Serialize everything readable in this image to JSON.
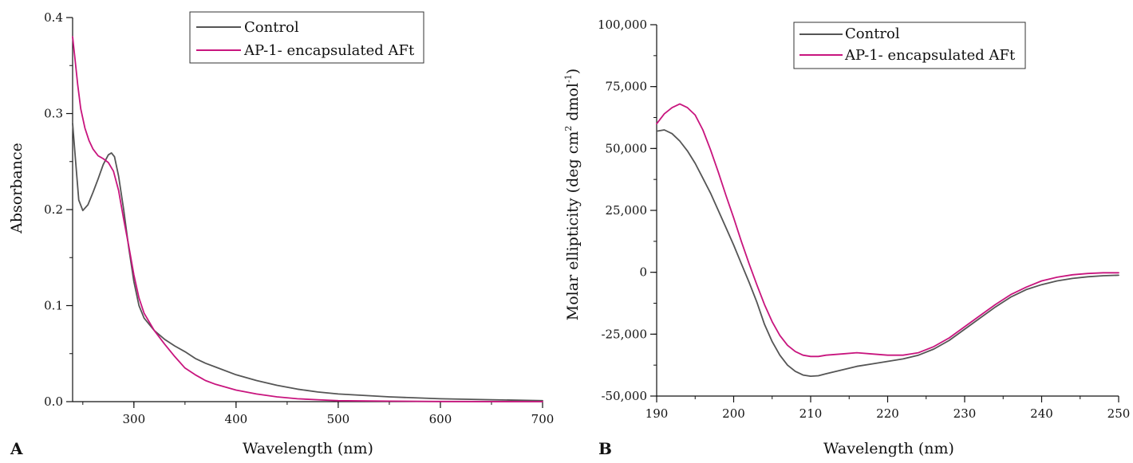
{
  "colors": {
    "control": "#555555",
    "encapsulated": "#c8157e",
    "axis": "#111111"
  },
  "chart_data": [
    {
      "panel": "A",
      "type": "line",
      "xlabel": "Wavelength (nm)",
      "ylabel": "Absorbance",
      "xlim": [
        240,
        700
      ],
      "ylim": [
        0,
        0.4
      ],
      "x_ticks": [
        300,
        400,
        500,
        600,
        700
      ],
      "y_ticks": [
        0.0,
        0.1,
        0.2,
        0.3,
        0.4
      ],
      "x_tick_labels": [
        "300",
        "400",
        "500",
        "600",
        "700"
      ],
      "y_tick_labels": [
        "0.0",
        "0.1",
        "0.2",
        "0.3",
        "0.4"
      ],
      "grid": false,
      "legend_position": "top-center",
      "series": [
        {
          "name": "Control",
          "color_key": "control",
          "x": [
            240,
            243,
            246,
            250,
            255,
            260,
            265,
            270,
            275,
            278,
            281,
            285,
            290,
            295,
            300,
            305,
            310,
            320,
            330,
            340,
            350,
            360,
            370,
            380,
            400,
            420,
            440,
            460,
            480,
            500,
            550,
            600,
            650,
            700
          ],
          "y": [
            0.29,
            0.25,
            0.21,
            0.199,
            0.205,
            0.218,
            0.232,
            0.247,
            0.257,
            0.259,
            0.255,
            0.235,
            0.2,
            0.16,
            0.125,
            0.1,
            0.087,
            0.074,
            0.065,
            0.058,
            0.052,
            0.045,
            0.04,
            0.036,
            0.028,
            0.022,
            0.017,
            0.013,
            0.01,
            0.008,
            0.005,
            0.003,
            0.002,
            0.001
          ]
        },
        {
          "name": "AP-1- encapsulated AFt",
          "color_key": "encapsulated",
          "x": [
            240,
            242,
            245,
            248,
            252,
            256,
            260,
            265,
            270,
            275,
            280,
            285,
            290,
            295,
            300,
            305,
            310,
            320,
            330,
            340,
            350,
            360,
            370,
            380,
            400,
            420,
            440,
            460,
            480,
            500,
            550,
            600,
            700
          ],
          "y": [
            0.38,
            0.36,
            0.33,
            0.305,
            0.285,
            0.272,
            0.263,
            0.256,
            0.253,
            0.249,
            0.24,
            0.22,
            0.19,
            0.162,
            0.132,
            0.108,
            0.092,
            0.074,
            0.06,
            0.047,
            0.035,
            0.028,
            0.022,
            0.018,
            0.012,
            0.008,
            0.005,
            0.003,
            0.002,
            0.001,
            0.0005,
            0.0002,
            0.0
          ]
        }
      ]
    },
    {
      "panel": "B",
      "type": "line",
      "xlabel": "Wavelength (nm)",
      "ylabel": "Molar ellipticity (deg cm",
      "ylabel_sup1": "2",
      "ylabel_mid": " dmol",
      "ylabel_sup2": "-1",
      "ylabel_end": ")",
      "xlim": [
        190,
        250
      ],
      "ylim": [
        -50000,
        100000
      ],
      "x_ticks": [
        190,
        200,
        210,
        220,
        230,
        240,
        250
      ],
      "y_ticks": [
        -50000,
        -25000,
        0,
        25000,
        50000,
        75000,
        100000
      ],
      "x_tick_labels": [
        "190",
        "200",
        "210",
        "220",
        "230",
        "240",
        "250"
      ],
      "y_tick_labels": [
        "-50,000",
        "-25,000",
        "0",
        "25,000",
        "50,000",
        "75,000",
        "100,000"
      ],
      "grid": false,
      "legend_position": "top-right",
      "series": [
        {
          "name": "Control",
          "color_key": "control",
          "x": [
            190,
            191,
            192,
            193,
            194,
            195,
            196,
            197,
            198,
            199,
            200,
            201,
            202,
            203,
            204,
            205,
            206,
            207,
            208,
            209,
            210,
            211,
            212,
            214,
            216,
            218,
            220,
            222,
            224,
            226,
            228,
            230,
            232,
            234,
            236,
            238,
            240,
            242,
            244,
            246,
            248,
            250
          ],
          "y": [
            57000,
            57500,
            56000,
            53000,
            49000,
            44000,
            38000,
            32000,
            25000,
            18000,
            11000,
            3500,
            -4000,
            -12000,
            -21000,
            -28000,
            -33500,
            -37500,
            -40000,
            -41500,
            -42000,
            -41800,
            -41000,
            -39500,
            -38000,
            -37000,
            -36000,
            -35000,
            -33500,
            -31000,
            -27500,
            -23000,
            -18500,
            -14000,
            -10000,
            -7000,
            -5000,
            -3500,
            -2500,
            -1800,
            -1400,
            -1200
          ]
        },
        {
          "name": "AP-1- encapsulated AFt",
          "color_key": "encapsulated",
          "x": [
            190,
            191,
            192,
            193,
            194,
            195,
            196,
            197,
            198,
            199,
            200,
            201,
            202,
            203,
            204,
            205,
            206,
            207,
            208,
            209,
            210,
            211,
            212,
            214,
            216,
            218,
            220,
            222,
            224,
            226,
            228,
            230,
            232,
            234,
            236,
            238,
            240,
            242,
            244,
            246,
            248,
            250
          ],
          "y": [
            60000,
            64000,
            66500,
            68000,
            66500,
            63500,
            57500,
            49500,
            40500,
            31000,
            22000,
            12500,
            3500,
            -5000,
            -13000,
            -20000,
            -25500,
            -29500,
            -32000,
            -33500,
            -34000,
            -34000,
            -33500,
            -33000,
            -32500,
            -33000,
            -33500,
            -33500,
            -32500,
            -30000,
            -26500,
            -22000,
            -17500,
            -13000,
            -9000,
            -6000,
            -3500,
            -2000,
            -1000,
            -500,
            -200,
            -200
          ]
        }
      ]
    }
  ],
  "panel_labels": {
    "a": "A",
    "b": "B"
  }
}
